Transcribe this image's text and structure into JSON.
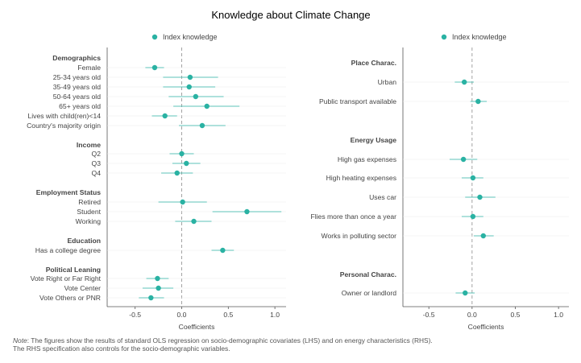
{
  "title": "Knowledge about Climate Change",
  "note": {
    "lead": "Note",
    "line1": ": The figures show the results of standard OLS regression on socio-demographic covariates (LHS) and on energy characteristics (RHS).",
    "line2": "The RHS specification also controls for the socio-demographic variables."
  },
  "colors": {
    "point": "#2ab2a3",
    "zero_line": "#999999",
    "axis": "#555555",
    "grid": "#eeeeee"
  },
  "chart_data": [
    {
      "type": "scatter",
      "subtype": "coefficient-plot",
      "legend": "Index knowledge",
      "legend_position": "top",
      "xlabel": "Coefficients",
      "xlim": [
        -0.8,
        1.12
      ],
      "xticks": [
        -0.5,
        0.0,
        0.5,
        1.0
      ],
      "xtick_labels": [
        "-0.5",
        "0.0",
        "0.5",
        "1.0"
      ],
      "groups": [
        {
          "label": "Demographics",
          "items": [
            {
              "label": "Female",
              "coef": -0.29,
              "lo": -0.39,
              "hi": -0.19
            },
            {
              "label": "25-34 years old",
              "coef": 0.09,
              "lo": -0.2,
              "hi": 0.39
            },
            {
              "label": "35-49 years old",
              "coef": 0.08,
              "lo": -0.2,
              "hi": 0.36
            },
            {
              "label": "50-64 years old",
              "coef": 0.15,
              "lo": -0.14,
              "hi": 0.45
            },
            {
              "label": "65+ years old",
              "coef": 0.27,
              "lo": -0.09,
              "hi": 0.62
            },
            {
              "label": "Lives with child(ren)<14",
              "coef": -0.18,
              "lo": -0.32,
              "hi": -0.05
            },
            {
              "label": "Country's majority origin",
              "coef": 0.22,
              "lo": -0.03,
              "hi": 0.47
            }
          ]
        },
        {
          "label": "Income",
          "items": [
            {
              "label": "Q2",
              "coef": 0.0,
              "lo": -0.13,
              "hi": 0.13
            },
            {
              "label": "Q3",
              "coef": 0.05,
              "lo": -0.1,
              "hi": 0.2
            },
            {
              "label": "Q4",
              "coef": -0.05,
              "lo": -0.22,
              "hi": 0.12
            }
          ]
        },
        {
          "label": "Employment Status",
          "items": [
            {
              "label": "Retired",
              "coef": 0.01,
              "lo": -0.25,
              "hi": 0.27
            },
            {
              "label": "Student",
              "coef": 0.7,
              "lo": 0.33,
              "hi": 1.07
            },
            {
              "label": "Working",
              "coef": 0.13,
              "lo": -0.07,
              "hi": 0.32
            }
          ]
        },
        {
          "label": "Education",
          "items": [
            {
              "label": "Has a college degree",
              "coef": 0.44,
              "lo": 0.32,
              "hi": 0.56
            }
          ]
        },
        {
          "label": "Political Leaning",
          "items": [
            {
              "label": "Vote Right or Far Right",
              "coef": -0.26,
              "lo": -0.38,
              "hi": -0.14
            },
            {
              "label": "Vote Center",
              "coef": -0.25,
              "lo": -0.42,
              "hi": -0.09
            },
            {
              "label": "Vote Others or PNR",
              "coef": -0.33,
              "lo": -0.46,
              "hi": -0.19
            }
          ]
        }
      ]
    },
    {
      "type": "scatter",
      "subtype": "coefficient-plot",
      "legend": "Index knowledge",
      "legend_position": "top",
      "xlabel": "Coefficients",
      "xlim": [
        -0.8,
        1.12
      ],
      "xticks": [
        -0.5,
        0.0,
        0.5,
        1.0
      ],
      "xtick_labels": [
        "-0.5",
        "0.0",
        "0.5",
        "1.0"
      ],
      "groups": [
        {
          "label": "Place Charac.",
          "items": [
            {
              "label": "Urban",
              "coef": -0.09,
              "lo": -0.2,
              "hi": 0.02
            },
            {
              "label": "Public transport available",
              "coef": 0.07,
              "lo": -0.02,
              "hi": 0.17
            }
          ]
        },
        {
          "label": "Energy Usage",
          "items": [
            {
              "label": "High gas expenses",
              "coef": -0.1,
              "lo": -0.26,
              "hi": 0.06
            },
            {
              "label": "High heating expenses",
              "coef": 0.01,
              "lo": -0.12,
              "hi": 0.13
            },
            {
              "label": "Uses car",
              "coef": 0.09,
              "lo": -0.08,
              "hi": 0.27
            },
            {
              "label": "Flies more than once a year",
              "coef": 0.01,
              "lo": -0.12,
              "hi": 0.13
            },
            {
              "label": "Works in polluting sector",
              "coef": 0.13,
              "lo": 0.02,
              "hi": 0.25
            }
          ]
        },
        {
          "label": "Personal Charac.",
          "items": [
            {
              "label": "Owner or landlord",
              "coef": -0.08,
              "lo": -0.19,
              "hi": 0.03
            }
          ]
        }
      ]
    }
  ]
}
